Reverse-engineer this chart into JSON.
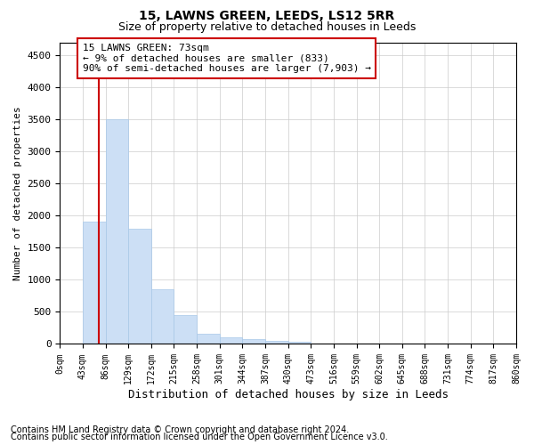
{
  "title": "15, LAWNS GREEN, LEEDS, LS12 5RR",
  "subtitle": "Size of property relative to detached houses in Leeds",
  "xlabel": "Distribution of detached houses by size in Leeds",
  "ylabel": "Number of detached properties",
  "footnote1": "Contains HM Land Registry data © Crown copyright and database right 2024.",
  "footnote2": "Contains public sector information licensed under the Open Government Licence v3.0.",
  "annotation_title": "15 LAWNS GREEN: 73sqm",
  "annotation_line1": "← 9% of detached houses are smaller (833)",
  "annotation_line2": "90% of semi-detached houses are larger (7,903) →",
  "bar_color": "#ccdff5",
  "bar_edge_color": "#a8c8e8",
  "redline_color": "#cc0000",
  "annotation_box_facecolor": "#ffffff",
  "annotation_box_edgecolor": "#cc0000",
  "ylim": [
    0,
    4700
  ],
  "yticks": [
    0,
    500,
    1000,
    1500,
    2000,
    2500,
    3000,
    3500,
    4000,
    4500
  ],
  "bin_edges": [
    0,
    43,
    86,
    129,
    172,
    215,
    258,
    301,
    344,
    387,
    430,
    473,
    516,
    559,
    602,
    645,
    688,
    731,
    774,
    817,
    860
  ],
  "bar_heights": [
    0,
    1900,
    3500,
    1800,
    850,
    450,
    160,
    100,
    70,
    55,
    40,
    0,
    0,
    0,
    0,
    0,
    0,
    0,
    0,
    0
  ],
  "property_size": 73,
  "background_color": "#ffffff",
  "grid_color": "#cccccc",
  "title_fontsize": 10,
  "subtitle_fontsize": 9,
  "xlabel_fontsize": 9,
  "ylabel_fontsize": 8,
  "tick_fontsize": 7,
  "annotation_fontsize": 8,
  "footnote_fontsize": 7
}
